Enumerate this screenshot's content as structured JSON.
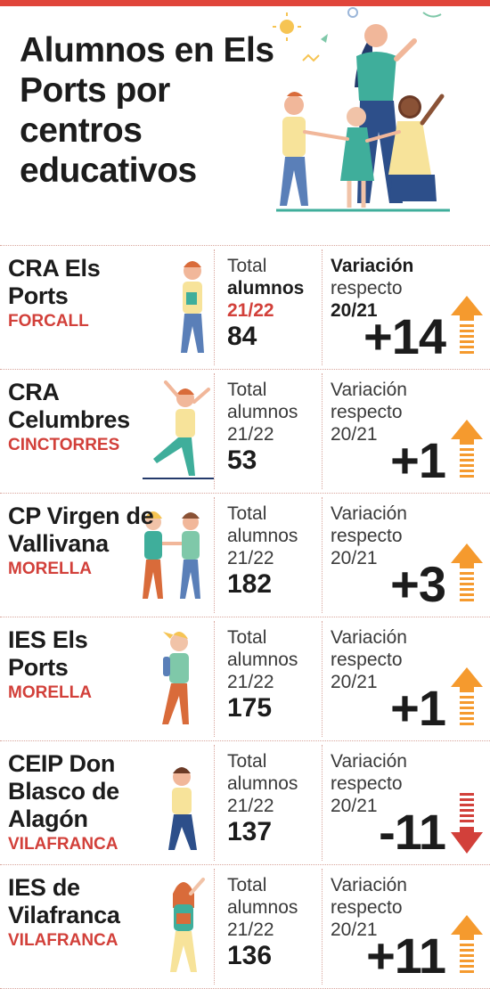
{
  "title": "Alumnos en Els Ports por centros educativos",
  "colors": {
    "accent": "#e0453a",
    "up_arrow": "#f59a2e",
    "down_arrow": "#d2403a"
  },
  "rows": [
    {
      "school": "CRA Els Ports",
      "town": "FORCALL",
      "total_label_1": "Total",
      "total_label_2": "alumnos",
      "total_label_3": "21/22",
      "total": "84",
      "var_label_1": "Variación",
      "var_label_2": "respecto",
      "var_label_3": "20/21",
      "delta": "+14",
      "direction": "up"
    },
    {
      "school": "CRA Celumbres",
      "town": "CINCTORRES",
      "total_label_1": "Total",
      "total_label_2": "alumnos",
      "total_label_3": "21/22",
      "total": "53",
      "var_label_1": "Variación",
      "var_label_2": "respecto",
      "var_label_3": "20/21",
      "delta": "+1",
      "direction": "up"
    },
    {
      "school": "CP Virgen de Vallivana",
      "town": "MORELLA",
      "total_label_1": "Total",
      "total_label_2": "alumnos",
      "total_label_3": "21/22",
      "total": "182",
      "var_label_1": "Variación",
      "var_label_2": "respecto",
      "var_label_3": "20/21",
      "delta": "+3",
      "direction": "up"
    },
    {
      "school": "IES Els Ports",
      "town": "MORELLA",
      "total_label_1": "Total",
      "total_label_2": "alumnos",
      "total_label_3": "21/22",
      "total": "175",
      "var_label_1": "Variación",
      "var_label_2": "respecto",
      "var_label_3": "20/21",
      "delta": "+1",
      "direction": "up"
    },
    {
      "school": "CEIP Don Blasco de Alagón",
      "town": "VILAFRANCA",
      "total_label_1": "Total",
      "total_label_2": "alumnos",
      "total_label_3": "21/22",
      "total": "137",
      "var_label_1": "Variación",
      "var_label_2": "respecto",
      "var_label_3": "20/21",
      "delta": "-11",
      "direction": "down"
    },
    {
      "school": "IES de Vilafranca",
      "town": "VILAFRANCA",
      "total_label_1": "Total",
      "total_label_2": "alumnos",
      "total_label_3": "21/22",
      "total": "136",
      "var_label_1": "Variación",
      "var_label_2": "respecto",
      "var_label_3": "20/21",
      "delta": "+11",
      "direction": "up"
    }
  ]
}
